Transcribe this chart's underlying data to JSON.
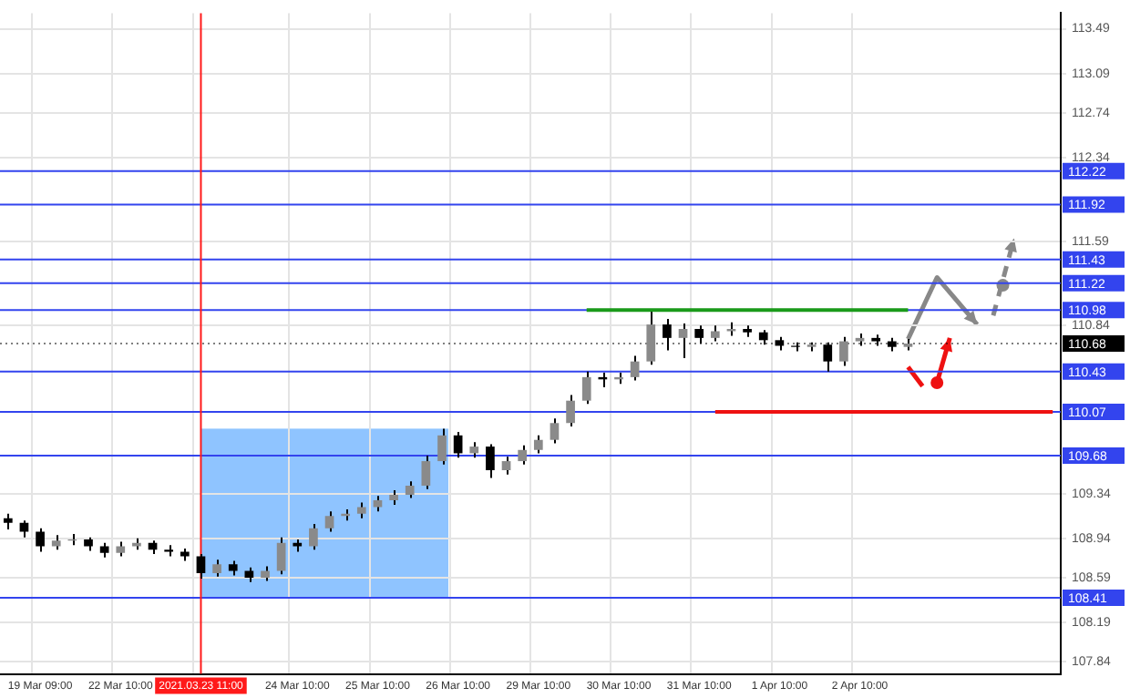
{
  "chart_data": {
    "type": "candlestick",
    "categories": [
      null,
      null,
      "19 Mar 09:00",
      null,
      null,
      null,
      null,
      "22 Mar 10:00",
      null,
      null,
      null,
      null,
      "2021.03.23 11:00",
      null,
      null,
      null,
      null,
      null,
      "24 Mar 10:00",
      null,
      null,
      null,
      null,
      "25 Mar 10:00",
      null,
      null,
      null,
      null,
      "26 Mar 10:00",
      null,
      null,
      null,
      null,
      "29 Mar 10:00",
      null,
      null,
      null,
      null,
      "30 Mar 10:00",
      null,
      null,
      null,
      null,
      "31 Mar 10:00",
      null,
      null,
      null,
      null,
      "1 Apr 10:00",
      null,
      null,
      null,
      null,
      "2 Apr 10:00",
      null,
      null,
      null,
      null,
      null,
      null,
      null,
      null,
      null,
      null,
      null,
      null
    ],
    "ohlc": [
      [
        109.12,
        109.16,
        109.02,
        109.08
      ],
      [
        109.08,
        109.1,
        108.95,
        109.0
      ],
      [
        109.0,
        109.03,
        108.82,
        108.87
      ],
      [
        108.87,
        108.97,
        108.84,
        108.92
      ],
      [
        108.92,
        108.98,
        108.88,
        108.93
      ],
      [
        108.93,
        108.95,
        108.83,
        108.87
      ],
      [
        108.87,
        108.9,
        108.77,
        108.81
      ],
      [
        108.81,
        108.91,
        108.78,
        108.87
      ],
      [
        108.87,
        108.94,
        108.84,
        108.9
      ],
      [
        108.9,
        108.92,
        108.8,
        108.84
      ],
      [
        108.84,
        108.88,
        108.78,
        108.82
      ],
      [
        108.82,
        108.85,
        108.74,
        108.78
      ],
      [
        108.78,
        108.8,
        108.58,
        108.63
      ],
      [
        108.63,
        108.75,
        108.6,
        108.71
      ],
      [
        108.71,
        108.74,
        108.61,
        108.65
      ],
      [
        108.65,
        108.68,
        108.55,
        108.59
      ],
      [
        108.59,
        108.69,
        108.56,
        108.65
      ],
      [
        108.65,
        108.95,
        108.62,
        108.9
      ],
      [
        108.9,
        108.93,
        108.82,
        108.87
      ],
      [
        108.87,
        109.07,
        108.84,
        109.03
      ],
      [
        109.03,
        109.18,
        109.0,
        109.14
      ],
      [
        109.14,
        109.2,
        109.1,
        109.16
      ],
      [
        109.16,
        109.26,
        109.12,
        109.22
      ],
      [
        109.22,
        109.32,
        109.18,
        109.28
      ],
      [
        109.28,
        109.37,
        109.24,
        109.33
      ],
      [
        109.33,
        109.45,
        109.3,
        109.41
      ],
      [
        109.41,
        109.68,
        109.38,
        109.63
      ],
      [
        109.63,
        109.92,
        109.6,
        109.86
      ],
      [
        109.86,
        109.89,
        109.66,
        109.7
      ],
      [
        109.7,
        109.8,
        109.66,
        109.76
      ],
      [
        109.76,
        109.78,
        109.48,
        109.55
      ],
      [
        109.55,
        109.67,
        109.51,
        109.63
      ],
      [
        109.63,
        109.77,
        109.6,
        109.73
      ],
      [
        109.73,
        109.86,
        109.7,
        109.82
      ],
      [
        109.82,
        110.01,
        109.79,
        109.97
      ],
      [
        109.97,
        110.22,
        109.94,
        110.17
      ],
      [
        110.17,
        110.43,
        110.14,
        110.38
      ],
      [
        110.38,
        110.42,
        110.29,
        110.36
      ],
      [
        110.36,
        110.42,
        110.32,
        110.38
      ],
      [
        110.38,
        110.57,
        110.35,
        110.52
      ],
      [
        110.52,
        110.98,
        110.49,
        110.85
      ],
      [
        110.85,
        110.9,
        110.62,
        110.73
      ],
      [
        110.73,
        110.86,
        110.55,
        110.81
      ],
      [
        110.81,
        110.84,
        110.68,
        110.73
      ],
      [
        110.73,
        110.84,
        110.7,
        110.79
      ],
      [
        110.79,
        110.87,
        110.75,
        110.81
      ],
      [
        110.81,
        110.84,
        110.74,
        110.78
      ],
      [
        110.78,
        110.8,
        110.67,
        110.71
      ],
      [
        110.71,
        110.74,
        110.62,
        110.66
      ],
      [
        110.66,
        110.69,
        110.61,
        110.65
      ],
      [
        110.65,
        110.69,
        110.61,
        110.67
      ],
      [
        110.67,
        110.69,
        110.43,
        110.52
      ],
      [
        110.52,
        110.74,
        110.48,
        110.7
      ],
      [
        110.7,
        110.77,
        110.66,
        110.73
      ],
      [
        110.73,
        110.76,
        110.66,
        110.7
      ],
      [
        110.7,
        110.73,
        110.61,
        110.65
      ],
      [
        110.65,
        110.72,
        110.62,
        110.68
      ],
      null,
      null,
      null,
      null,
      null,
      null,
      null,
      null,
      null
    ],
    "series": [
      {
        "type": "line",
        "color": "#1a9a1a",
        "values": [
          null,
          null,
          null,
          null,
          null,
          null,
          null,
          null,
          null,
          null,
          null,
          null,
          null,
          null,
          null,
          null,
          null,
          null,
          null,
          null,
          null,
          null,
          null,
          null,
          null,
          null,
          null,
          null,
          null,
          null,
          null,
          null,
          null,
          null,
          null,
          null,
          110.98,
          110.98,
          110.98,
          110.98,
          110.98,
          110.98,
          110.98,
          110.98,
          110.98,
          110.98,
          110.98,
          110.98,
          110.98,
          110.98,
          110.98,
          110.98,
          110.98,
          110.98,
          110.98,
          110.98,
          110.98,
          null,
          null,
          null,
          null,
          null,
          null,
          null,
          null,
          null
        ]
      },
      {
        "type": "line",
        "color": "#ee1111",
        "values": [
          null,
          null,
          null,
          null,
          null,
          null,
          null,
          null,
          null,
          null,
          null,
          null,
          null,
          null,
          null,
          null,
          null,
          null,
          null,
          null,
          null,
          null,
          null,
          null,
          null,
          null,
          null,
          null,
          null,
          null,
          null,
          null,
          null,
          null,
          null,
          null,
          null,
          null,
          null,
          null,
          null,
          null,
          null,
          null,
          110.07,
          110.07,
          110.07,
          110.07,
          110.07,
          110.07,
          110.07,
          110.07,
          110.07,
          110.07,
          110.07,
          110.07,
          110.07,
          110.07,
          110.07,
          110.07,
          110.07,
          110.07,
          110.07,
          110.07,
          110.07,
          110.07
        ]
      }
    ],
    "ylim": [
      107.73,
      113.63
    ],
    "yticks": [
      113.49,
      113.09,
      112.74,
      112.34,
      111.59,
      110.84,
      109.34,
      108.94,
      108.59,
      108.19,
      107.84
    ],
    "ref_lines": [
      {
        "axis": "y",
        "value": 112.22,
        "label": "112.22",
        "color": "#3344ee"
      },
      {
        "axis": "y",
        "value": 111.92,
        "label": "111.92",
        "color": "#3344ee"
      },
      {
        "axis": "y",
        "value": 111.43,
        "label": "111.43",
        "color": "#3344ee"
      },
      {
        "axis": "y",
        "value": 111.22,
        "label": "111.22",
        "color": "#3344ee"
      },
      {
        "axis": "y",
        "value": 110.98,
        "label": "110.98",
        "color": "#3344ee"
      },
      {
        "axis": "y",
        "value": 110.68,
        "label": "110.68",
        "color": "#000000",
        "line_style": "dotted"
      },
      {
        "axis": "y",
        "value": 110.43,
        "label": "110.43",
        "color": "#3344ee"
      },
      {
        "axis": "y",
        "value": 110.07,
        "label": "110.07",
        "color": "#3344ee"
      },
      {
        "axis": "y",
        "value": 109.68,
        "label": "109.68",
        "color": "#3344ee"
      },
      {
        "axis": "y",
        "value": 108.41,
        "label": "108.41",
        "color": "#3344ee"
      },
      {
        "axis": "x",
        "value": "2021.03.23 11:00",
        "color": "#ff1a1a"
      }
    ],
    "grid": true,
    "legend": false
  }
}
